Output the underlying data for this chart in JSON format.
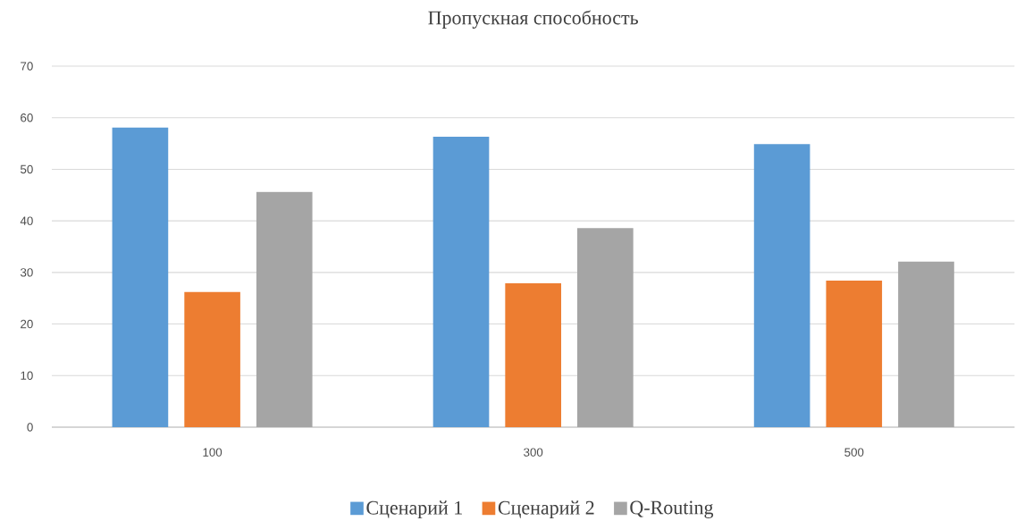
{
  "chart_data": {
    "type": "bar",
    "title": "Пропускная способность",
    "categories": [
      "100",
      "300",
      "500"
    ],
    "series": [
      {
        "name": "Сценарий 1",
        "color": "#5b9bd5",
        "values": [
          58.1,
          56.3,
          54.9
        ]
      },
      {
        "name": "Сценарий 2",
        "color": "#ed7d31",
        "values": [
          26.2,
          27.9,
          28.4
        ]
      },
      {
        "name": "Q-Routing",
        "color": "#a5a5a5",
        "values": [
          45.6,
          38.6,
          32.1
        ]
      }
    ],
    "ylim": [
      0,
      70
    ],
    "yticks": [
      0,
      10,
      20,
      30,
      40,
      50,
      60,
      70
    ],
    "grid": "y",
    "legend": "bottom"
  }
}
